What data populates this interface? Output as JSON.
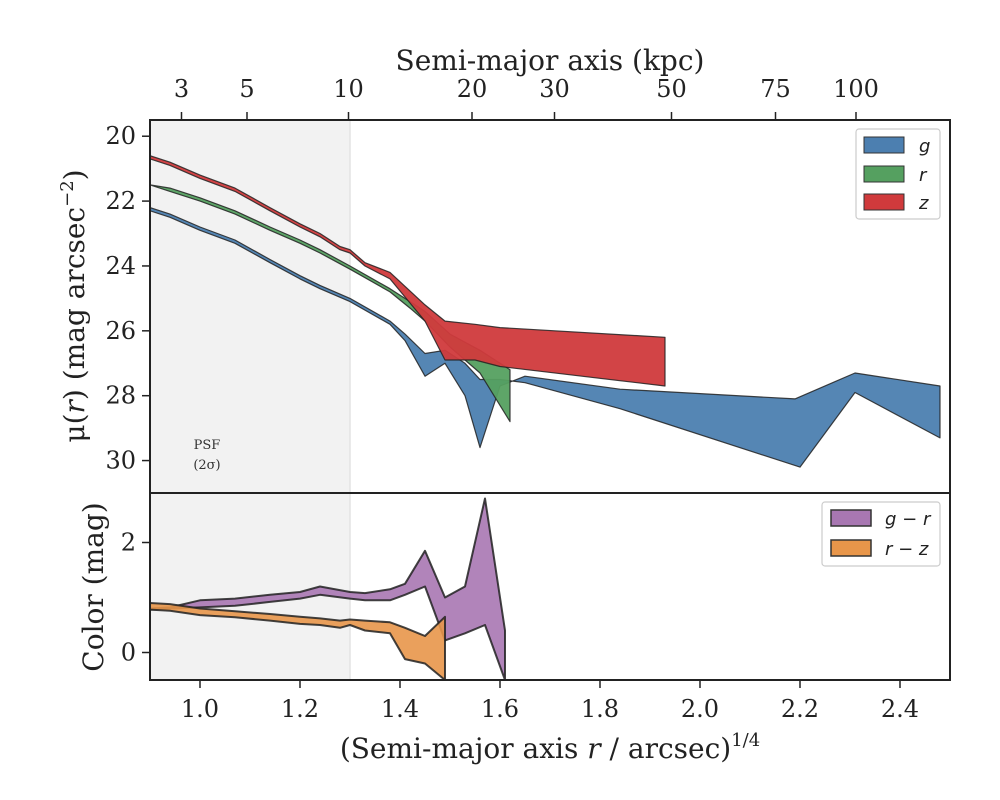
{
  "chart_data": [
    {
      "type": "area",
      "panel": "surface-brightness",
      "top_axis": {
        "label": "Semi-major axis (kpc)",
        "ticks": [
          3,
          5,
          10,
          20,
          30,
          50,
          75,
          100
        ],
        "tick_labels": [
          "3",
          "5",
          "10",
          "20",
          "30",
          "50",
          "75",
          "100"
        ],
        "tick_positions": [
          0.963,
          1.094,
          1.297,
          1.544,
          1.709,
          1.943,
          2.151,
          2.312
        ]
      },
      "xlim": [
        0.9,
        2.5
      ],
      "ylim": [
        31.0,
        19.5
      ],
      "y_inverted": true,
      "ylabel_prefix": "μ(",
      "ylabel_var": "r",
      "ylabel_mid": ") (mag arcsec",
      "ylabel_sup": "−2",
      "ylabel_suffix": ")",
      "yticks": [
        20,
        22,
        24,
        26,
        28,
        30
      ],
      "ytick_labels": [
        "20",
        "22",
        "24",
        "26",
        "28",
        "30"
      ],
      "psf_band": {
        "x_range": [
          0.9,
          1.3
        ],
        "label_line1": "PSF",
        "label_line2": "(2σ)"
      },
      "legend": {
        "position": "top-right"
      },
      "series": [
        {
          "name": "g",
          "color": "#4C7FB0",
          "upper": [
            [
              0.9,
              22.2
            ],
            [
              0.94,
              22.4
            ],
            [
              1.0,
              22.8
            ],
            [
              1.07,
              23.2
            ],
            [
              1.14,
              23.8
            ],
            [
              1.2,
              24.3
            ],
            [
              1.24,
              24.6
            ],
            [
              1.3,
              25.0
            ],
            [
              1.38,
              25.7
            ],
            [
              1.41,
              26.1
            ],
            [
              1.45,
              26.7
            ],
            [
              1.49,
              26.6
            ],
            [
              1.53,
              27.0
            ],
            [
              1.56,
              27.5
            ],
            [
              1.6,
              27.5
            ],
            [
              1.65,
              27.6
            ],
            [
              1.84,
              28.4
            ],
            [
              2.2,
              30.2
            ],
            [
              2.31,
              27.9
            ],
            [
              2.48,
              29.3
            ]
          ],
          "lower": [
            [
              0.9,
              22.3
            ],
            [
              0.94,
              22.5
            ],
            [
              1.0,
              22.9
            ],
            [
              1.07,
              23.3
            ],
            [
              1.14,
              23.9
            ],
            [
              1.2,
              24.4
            ],
            [
              1.24,
              24.7
            ],
            [
              1.3,
              25.1
            ],
            [
              1.38,
              25.8
            ],
            [
              1.41,
              26.3
            ],
            [
              1.45,
              27.4
            ],
            [
              1.49,
              27.0
            ],
            [
              1.53,
              28.0
            ],
            [
              1.56,
              29.6
            ],
            [
              1.6,
              27.7
            ],
            [
              1.65,
              27.4
            ],
            [
              1.84,
              27.8
            ],
            [
              2.19,
              28.1
            ],
            [
              2.31,
              27.3
            ],
            [
              2.48,
              27.7
            ]
          ]
        },
        {
          "name": "r",
          "color": "#55A060",
          "upper": [
            [
              0.9,
              21.5
            ],
            [
              0.94,
              21.6
            ],
            [
              1.0,
              21.9
            ],
            [
              1.07,
              22.3
            ],
            [
              1.14,
              22.8
            ],
            [
              1.2,
              23.2
            ],
            [
              1.24,
              23.5
            ],
            [
              1.3,
              24.0
            ],
            [
              1.38,
              24.7
            ],
            [
              1.42,
              25.1
            ],
            [
              1.45,
              25.4
            ],
            [
              1.5,
              26.1
            ],
            [
              1.56,
              26.6
            ],
            [
              1.62,
              27.2
            ]
          ],
          "lower": [
            [
              0.9,
              21.5
            ],
            [
              0.94,
              21.7
            ],
            [
              1.0,
              22.0
            ],
            [
              1.07,
              22.4
            ],
            [
              1.14,
              22.9
            ],
            [
              1.2,
              23.3
            ],
            [
              1.24,
              23.6
            ],
            [
              1.3,
              24.1
            ],
            [
              1.38,
              24.8
            ],
            [
              1.42,
              25.3
            ],
            [
              1.45,
              25.7
            ],
            [
              1.5,
              26.5
            ],
            [
              1.56,
              27.3
            ],
            [
              1.62,
              28.8
            ]
          ]
        },
        {
          "name": "z",
          "color": "#D03A3C",
          "upper": [
            [
              0.9,
              20.6
            ],
            [
              0.94,
              20.8
            ],
            [
              1.0,
              21.2
            ],
            [
              1.07,
              21.6
            ],
            [
              1.14,
              22.2
            ],
            [
              1.2,
              22.7
            ],
            [
              1.24,
              23.0
            ],
            [
              1.28,
              23.4
            ],
            [
              1.3,
              23.5
            ],
            [
              1.33,
              23.9
            ],
            [
              1.38,
              24.2
            ],
            [
              1.45,
              25.2
            ],
            [
              1.49,
              25.7
            ],
            [
              1.55,
              25.8
            ],
            [
              1.6,
              25.9
            ],
            [
              1.93,
              26.2
            ]
          ],
          "lower": [
            [
              0.9,
              20.7
            ],
            [
              0.94,
              20.9
            ],
            [
              1.0,
              21.3
            ],
            [
              1.07,
              21.7
            ],
            [
              1.14,
              22.3
            ],
            [
              1.2,
              22.8
            ],
            [
              1.24,
              23.1
            ],
            [
              1.28,
              23.5
            ],
            [
              1.3,
              23.6
            ],
            [
              1.33,
              24.0
            ],
            [
              1.38,
              24.4
            ],
            [
              1.45,
              25.7
            ],
            [
              1.49,
              26.9
            ],
            [
              1.55,
              26.9
            ],
            [
              1.6,
              27.1
            ],
            [
              1.93,
              27.7
            ]
          ]
        }
      ]
    },
    {
      "type": "area",
      "panel": "color",
      "xlabel_prefix": "(Semi-major axis ",
      "xlabel_var": "r",
      "xlabel_mid": " / arcsec)",
      "xlabel_sup": "1/4",
      "xticks": [
        1.0,
        1.2,
        1.4,
        1.6,
        1.8,
        2.0,
        2.2,
        2.4
      ],
      "xtick_labels": [
        "1.0",
        "1.2",
        "1.4",
        "1.6",
        "1.8",
        "2.0",
        "2.2",
        "2.4"
      ],
      "xlim": [
        0.9,
        2.5
      ],
      "ylabel": "Color (mag)",
      "ylim": [
        -0.5,
        2.9
      ],
      "yticks": [
        0,
        2
      ],
      "ytick_labels": [
        "0",
        "2"
      ],
      "legend": {
        "position": "top-right"
      },
      "series": [
        {
          "name": "g − r",
          "color": "#A877B2",
          "upper": [
            [
              0.9,
              0.8
            ],
            [
              0.94,
              0.82
            ],
            [
              1.0,
              0.95
            ],
            [
              1.07,
              0.98
            ],
            [
              1.14,
              1.05
            ],
            [
              1.2,
              1.1
            ],
            [
              1.24,
              1.2
            ],
            [
              1.3,
              1.1
            ],
            [
              1.33,
              1.08
            ],
            [
              1.38,
              1.15
            ],
            [
              1.41,
              1.25
            ],
            [
              1.45,
              1.85
            ],
            [
              1.49,
              1.0
            ],
            [
              1.53,
              1.2
            ],
            [
              1.57,
              2.8
            ],
            [
              1.61,
              0.4
            ]
          ],
          "lower": [
            [
              0.9,
              0.78
            ],
            [
              0.94,
              0.8
            ],
            [
              1.0,
              0.82
            ],
            [
              1.07,
              0.85
            ],
            [
              1.14,
              0.92
            ],
            [
              1.2,
              0.98
            ],
            [
              1.24,
              1.05
            ],
            [
              1.3,
              0.98
            ],
            [
              1.33,
              0.95
            ],
            [
              1.38,
              0.95
            ],
            [
              1.41,
              1.05
            ],
            [
              1.45,
              1.2
            ],
            [
              1.49,
              0.22
            ],
            [
              1.53,
              0.35
            ],
            [
              1.57,
              0.5
            ],
            [
              1.61,
              -0.5
            ]
          ]
        },
        {
          "name": "r − z",
          "color": "#E8964A",
          "upper": [
            [
              0.9,
              0.9
            ],
            [
              0.94,
              0.88
            ],
            [
              1.0,
              0.8
            ],
            [
              1.07,
              0.75
            ],
            [
              1.14,
              0.7
            ],
            [
              1.2,
              0.65
            ],
            [
              1.24,
              0.62
            ],
            [
              1.28,
              0.58
            ],
            [
              1.3,
              0.6
            ],
            [
              1.33,
              0.58
            ],
            [
              1.38,
              0.55
            ],
            [
              1.41,
              0.45
            ],
            [
              1.45,
              0.3
            ],
            [
              1.49,
              0.65
            ]
          ],
          "lower": [
            [
              0.9,
              0.78
            ],
            [
              0.94,
              0.76
            ],
            [
              1.0,
              0.68
            ],
            [
              1.07,
              0.64
            ],
            [
              1.14,
              0.58
            ],
            [
              1.2,
              0.52
            ],
            [
              1.24,
              0.5
            ],
            [
              1.28,
              0.45
            ],
            [
              1.3,
              0.5
            ],
            [
              1.33,
              0.4
            ],
            [
              1.38,
              0.35
            ],
            [
              1.41,
              -0.12
            ],
            [
              1.45,
              -0.2
            ],
            [
              1.49,
              -0.5
            ]
          ]
        }
      ]
    }
  ]
}
